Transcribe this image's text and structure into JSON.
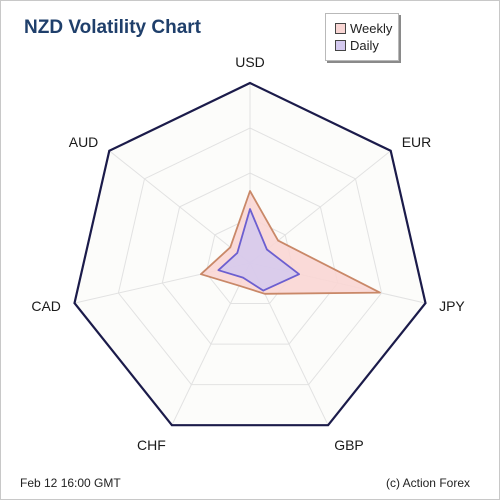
{
  "title": "NZD Volatility Chart",
  "footer": {
    "timestamp": "Feb 12  16:00 GMT",
    "credit": "(c) Action Forex"
  },
  "colors": {
    "outline": "#1b1b4a",
    "grid": "#e2e2e2",
    "weekly_fill": "#f9d6d4",
    "weekly_stroke": "#c98868",
    "daily_fill": "#d4c9ef",
    "daily_stroke": "#6c5fd0"
  },
  "chart_data": {
    "type": "radar",
    "title": "NZD Volatility Chart",
    "axes": [
      "USD",
      "EUR",
      "JPY",
      "GBP",
      "CHF",
      "CAD",
      "AUD"
    ],
    "rmax": 100,
    "grid_levels": 4,
    "series": [
      {
        "name": "Weekly",
        "values": [
          40,
          20,
          74,
          19,
          14,
          28,
          14
        ]
      },
      {
        "name": "Daily",
        "values": [
          30,
          12,
          28,
          17,
          9,
          18,
          9
        ]
      }
    ],
    "legend_position": "top-right"
  }
}
